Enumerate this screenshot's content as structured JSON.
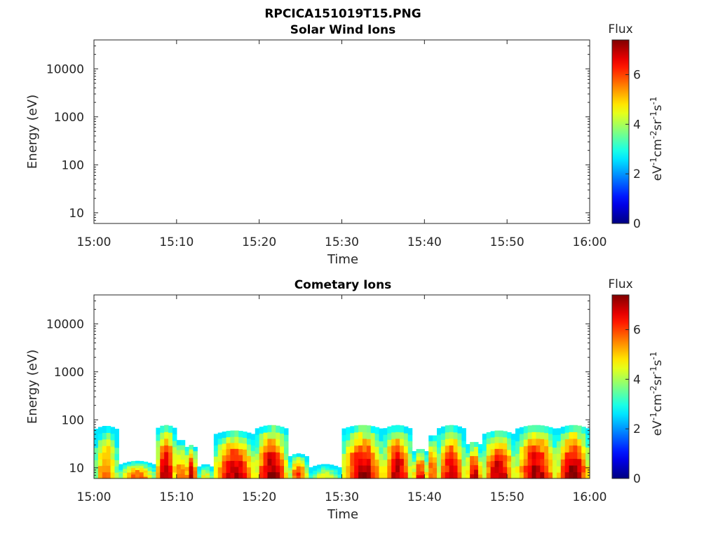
{
  "figure": {
    "title": "RPCICA151019T15.PNG"
  },
  "colorbar": {
    "label": "Flux",
    "unit_base": "eV",
    "unit_terms": [
      {
        "base": "eV",
        "exp": "-1"
      },
      {
        "base": "cm",
        "exp": "-2"
      },
      {
        "base": "sr",
        "exp": "-1"
      },
      {
        "base": "s",
        "exp": "-1"
      }
    ],
    "range": [
      0,
      7.4
    ],
    "ticks": [
      "0",
      "2",
      "4",
      "6"
    ],
    "colormap": "jet"
  },
  "chart_data": [
    {
      "type": "heatmap",
      "title": "Solar Wind Ions",
      "xlabel": "Time",
      "ylabel": "Energy (eV)",
      "yscale": "log",
      "x_range": [
        "15:00",
        "16:00"
      ],
      "y_range": [
        6,
        40000
      ],
      "x_ticks": [
        "15:00",
        "15:10",
        "15:20",
        "15:30",
        "15:40",
        "15:50",
        "16:00"
      ],
      "y_ticks": [
        "10",
        "100",
        "1000",
        "10000"
      ],
      "segments": []
    },
    {
      "type": "heatmap",
      "title": "Cometary Ions",
      "xlabel": "Time",
      "ylabel": "Energy (eV)",
      "yscale": "log",
      "x_range": [
        "15:00",
        "16:00"
      ],
      "y_range": [
        6,
        40000
      ],
      "x_ticks": [
        "15:00",
        "15:10",
        "15:20",
        "15:30",
        "15:40",
        "15:50",
        "16:00"
      ],
      "y_ticks": [
        "10",
        "100",
        "1000",
        "10000"
      ],
      "series_note": "flux (log) vs time and energy; segments give start/end time (min after 15:00), upper energy bound (eV) and peak flux",
      "segments": [
        {
          "t0": 0.0,
          "t1": 3.0,
          "emax": 75,
          "peak": 5.8
        },
        {
          "t0": 3.0,
          "t1": 7.5,
          "emax": 14,
          "peak": 6.0
        },
        {
          "t0": 7.5,
          "t1": 10.0,
          "emax": 78,
          "peak": 7.2
        },
        {
          "t0": 10.0,
          "t1": 11.0,
          "emax": 40,
          "peak": 6.4
        },
        {
          "t0": 11.0,
          "t1": 12.5,
          "emax": 30,
          "peak": 7.0
        },
        {
          "t0": 12.5,
          "t1": 14.5,
          "emax": 12,
          "peak": 4.8
        },
        {
          "t0": 14.5,
          "t1": 19.5,
          "emax": 60,
          "peak": 7.1
        },
        {
          "t0": 19.5,
          "t1": 23.5,
          "emax": 78,
          "peak": 7.3
        },
        {
          "t0": 23.5,
          "t1": 26.0,
          "emax": 20,
          "peak": 6.2
        },
        {
          "t0": 26.0,
          "t1": 30.0,
          "emax": 12,
          "peak": 4.6
        },
        {
          "t0": 30.0,
          "t1": 35.0,
          "emax": 78,
          "peak": 7.2
        },
        {
          "t0": 35.0,
          "t1": 38.5,
          "emax": 78,
          "peak": 7.0
        },
        {
          "t0": 38.5,
          "t1": 40.5,
          "emax": 25,
          "peak": 6.5
        },
        {
          "t0": 40.5,
          "t1": 41.5,
          "emax": 50,
          "peak": 6.8
        },
        {
          "t0": 41.5,
          "t1": 45.0,
          "emax": 78,
          "peak": 6.8
        },
        {
          "t0": 45.0,
          "t1": 47.0,
          "emax": 35,
          "peak": 6.9
        },
        {
          "t0": 47.0,
          "t1": 51.0,
          "emax": 60,
          "peak": 7.1
        },
        {
          "t0": 51.0,
          "t1": 56.0,
          "emax": 78,
          "peak": 7.2
        },
        {
          "t0": 56.0,
          "t1": 60.0,
          "emax": 78,
          "peak": 7.3
        }
      ]
    }
  ]
}
